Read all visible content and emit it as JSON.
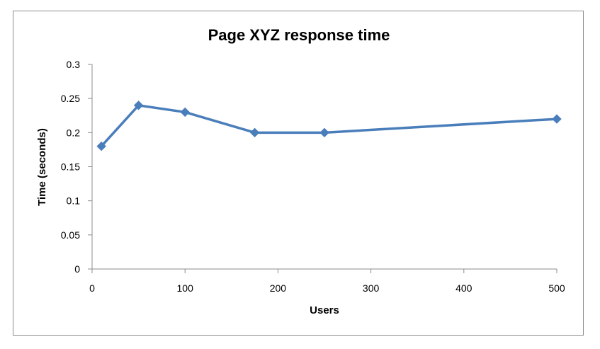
{
  "chart_data": {
    "type": "line",
    "title": "Page XYZ response time",
    "xlabel": "Users",
    "ylabel": "Time (seconds)",
    "xlim": [
      0,
      500
    ],
    "ylim": [
      0,
      0.3
    ],
    "xticks": [
      0,
      100,
      200,
      300,
      400,
      500
    ],
    "yticks": [
      0,
      0.05,
      0.1,
      0.15,
      0.2,
      0.25,
      0.3
    ],
    "xtick_labels": [
      "0",
      "100",
      "200",
      "300",
      "400",
      "500"
    ],
    "ytick_labels": [
      "0",
      "0.05",
      "0.1",
      "0.15",
      "0.2",
      "0.25",
      "0.3"
    ],
    "grid": false,
    "legend": "none",
    "series": [
      {
        "color": "#4a7ebb",
        "marker": "diamond",
        "points": [
          {
            "x": 10,
            "y": 0.18
          },
          {
            "x": 50,
            "y": 0.24
          },
          {
            "x": 100,
            "y": 0.23
          },
          {
            "x": 175,
            "y": 0.2
          },
          {
            "x": 250,
            "y": 0.2
          },
          {
            "x": 500,
            "y": 0.22
          }
        ]
      }
    ]
  }
}
